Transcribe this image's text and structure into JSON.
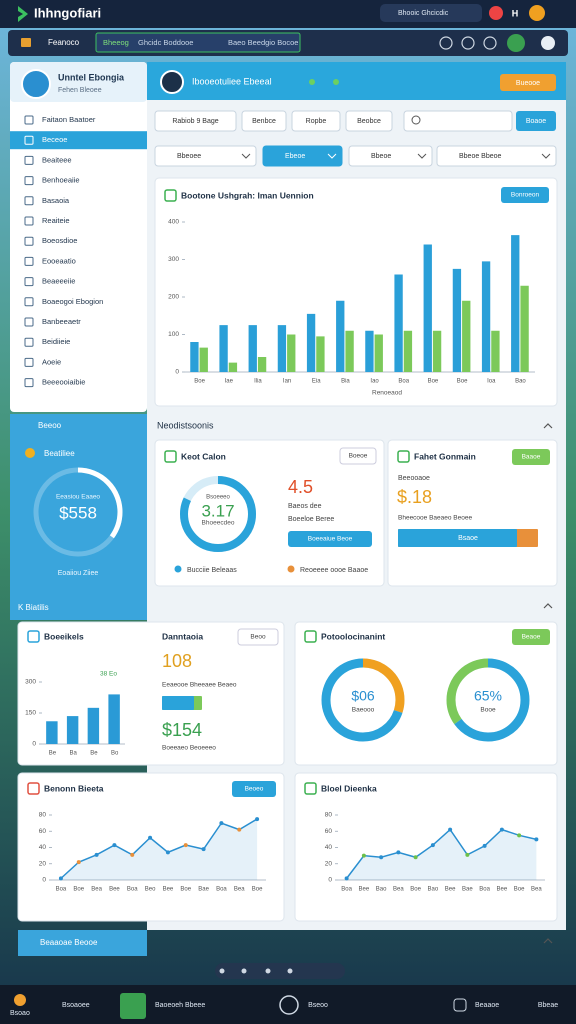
{
  "topbar": {
    "app_title": "Ihhngofiari",
    "search": "Bhooic Ghcicdic",
    "user_initial": "H"
  },
  "toolbar": {
    "home": "Feanoco",
    "status": "Bheeog",
    "status_text": "Ghcidc Boddooe",
    "info": "Baeo Beedgio Bocoe"
  },
  "sidebar": {
    "user_name": "Unntel Ebongia",
    "user_role": "Fehen Bleoee",
    "selected": 1,
    "menu": [
      "Faitaon Baatoer",
      "Beceoe",
      "Beaiteee",
      "Benhoeaiie",
      "Basaoia",
      "Reaiteie",
      "Boeosdioe",
      "Eooeaatio",
      "Beaeeeiie",
      "Boaeogoi Ebogion",
      "Banbeeaetr",
      "Beidiieie",
      "Aoeie",
      "Beeeooiaibie"
    ]
  },
  "left_panel": {
    "title": "Beeoo",
    "subtitle": "Beatiliee",
    "gauge": {
      "type": "gauge",
      "caption": "Eeasiou Eaaeo",
      "value_text": "$558",
      "percent": 35,
      "color": "#ffffff",
      "footer": "Eoaiiou Ziiee"
    },
    "section": "K Biatilis"
  },
  "main_header": {
    "title": "Ibooeotuliee Ebeeal",
    "button": "Bueooe"
  },
  "filters": {
    "buttons": [
      "Rabiob  9 Bage",
      "Benbce",
      "Ropbe",
      "Beobce"
    ],
    "search_button": "Boaoe",
    "dropdowns": [
      "Bbeoee",
      "Ebeoe",
      "Bbeoe",
      "Bbeoe Bbeoe"
    ],
    "active": 1
  },
  "main_chart": {
    "type": "bar",
    "title": "Bootone Ushgrah: Iman Uennion",
    "button": "Bonroeon",
    "x_label": "Renoeaod",
    "categories": [
      "Boe",
      "Iae",
      "Ilia",
      "Ian",
      "Eia",
      "Bia",
      "Iao",
      "Boa",
      "Boe",
      "Boe",
      "Ioa",
      "Bao"
    ],
    "series": [
      {
        "color": "#2a9fd8",
        "values": [
          80,
          125,
          125,
          125,
          155,
          190,
          110,
          260,
          340,
          275,
          295,
          365
        ]
      },
      {
        "color": "#7cc95a",
        "values": [
          65,
          25,
          40,
          100,
          95,
          110,
          100,
          110,
          110,
          190,
          110,
          230
        ]
      }
    ],
    "ylim": [
      0,
      400
    ],
    "yticks": [
      0,
      100,
      200,
      300,
      400
    ]
  },
  "section_title": "Neodistsoonis",
  "card_status": {
    "title": "Keot Calon",
    "button": "Boeoe",
    "donut": {
      "type": "donut",
      "percent": 82,
      "color": "#2aa3da",
      "label": "Bsoeeeo",
      "value_text": "3.17",
      "caption": "Bhoeecdeo"
    },
    "kpi": "4.5",
    "kpi_caption": "Baeos dee",
    "kpi_sub": "Boeeloe Beree",
    "action": "Boeeaiue Beoe",
    "legend": [
      "Bucciie Beleaas",
      "Reoeeee oooe Baaoe"
    ]
  },
  "card_finance": {
    "title": "Fahet Gonmain",
    "button": "Baaoe",
    "label": "Beeooaoe",
    "kpi": "$.18",
    "caption": "Bheecooe Baeaeo Beoee",
    "progress": {
      "type": "progress",
      "value": 85,
      "color": "#2aa3da",
      "label": "Bsaoe"
    }
  },
  "small_chart": {
    "type": "bar",
    "title": "Boeeikels",
    "note": "38 Eo",
    "categories": [
      "Be",
      "Ba",
      "Be",
      "Bo"
    ],
    "values": [
      110,
      135,
      175,
      240
    ],
    "color": "#2a9ad6",
    "ylim": [
      0,
      300
    ],
    "yticks": [
      0,
      150,
      300
    ]
  },
  "card_mid": {
    "title": "Danntaoia",
    "button": "Beoo",
    "kpi1": "108",
    "kpi1_caption": "Eeaeooe Bheeaee Beaeo",
    "kpi2": "$154",
    "kpi2_caption": "Boeeaeo Beoeeeo",
    "progress": {
      "type": "progress",
      "value": 80,
      "color": "#2aa3da"
    }
  },
  "card_donuts": {
    "title": "Potoolocinanint",
    "button": "Beaoe",
    "donut1": {
      "type": "donut2",
      "values": [
        30,
        70
      ],
      "colors": [
        "#f0a020",
        "#2aa3da"
      ],
      "value_text": "$06",
      "caption": "Baeooo"
    },
    "donut2": {
      "type": "donut2",
      "values": [
        65,
        35
      ],
      "colors": [
        "#2aa3da",
        "#7cc95a"
      ],
      "value_text": "65%",
      "caption": "Booe"
    }
  },
  "line_left": {
    "type": "line",
    "title": "Benonn Bieeta",
    "button": "Beoeo",
    "color": "#2a8fd0",
    "accent": "#e8903a",
    "categories": [
      "Boa",
      "Boe",
      "Bea",
      "Bee",
      "Boa",
      "Beo",
      "Bee",
      "Boe",
      "Bae",
      "Boa",
      "Bea",
      "Boe"
    ],
    "values": [
      2,
      22,
      31,
      43,
      31,
      52,
      34,
      43,
      38,
      70,
      62,
      75
    ],
    "ylim": [
      0,
      80
    ],
    "yticks": [
      0,
      20,
      40,
      60,
      80
    ]
  },
  "line_right": {
    "type": "line",
    "title": "Bloel Dieenka",
    "color": "#2a8fd0",
    "accent": "#6cc04a",
    "categories": [
      "Boa",
      "Bee",
      "Bao",
      "Bea",
      "Boe",
      "Bao",
      "Bee",
      "Bae",
      "Boa",
      "Bee",
      "Boe",
      "Bea"
    ],
    "values": [
      2,
      30,
      28,
      34,
      28,
      43,
      62,
      31,
      42,
      62,
      55,
      50
    ],
    "ylim": [
      0,
      80
    ],
    "yticks": [
      0,
      20,
      40,
      60,
      80
    ]
  },
  "footer": {
    "panel": "Beaaoae Beooe"
  },
  "taskbar": {
    "items": [
      "Bsoao",
      "Bsoaoee",
      "Baoeoeh Bbeee",
      "Bseoo",
      "Beaaoe",
      "Bbeae"
    ]
  }
}
